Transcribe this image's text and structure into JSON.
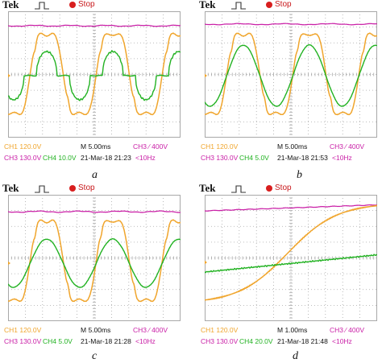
{
  "colors": {
    "ch1": "#f0a52c",
    "ch3": "#c91ea6",
    "ch4": "#22b222",
    "grid": "#a8a8a8",
    "stop": "#d81e1e"
  },
  "brand": "Tek",
  "run_state": "Stop",
  "ground_marker": "8",
  "panels": [
    {
      "id": "a",
      "caption": "a",
      "ch1_scale": "CH1  120.0V",
      "ch3_scale": "CH3  130.0V",
      "ch4_scale": "CH4  10.0V",
      "timebase": "M 5.00ms",
      "date_time": "21-Mar-18  21:23",
      "trigger": "CH3 ∕ 400V",
      "trigger_freq": "<10Hz"
    },
    {
      "id": "b",
      "caption": "b",
      "ch1_scale": "CH1  120.0V",
      "ch3_scale": "CH3  130.0V",
      "ch4_scale": "CH4  5.0V",
      "timebase": "M 5.00ms",
      "date_time": "21-Mar-18  21:53",
      "trigger": "CH3 ∕ 400V",
      "trigger_freq": "<10Hz"
    },
    {
      "id": "c",
      "caption": "c",
      "ch1_scale": "CH1  120.0V",
      "ch3_scale": "CH3  130.0V",
      "ch4_scale": "CH4  5.0V",
      "timebase": "M 5.00ms",
      "date_time": "21-Mar-18  21:28",
      "trigger": "CH3 ∕ 400V",
      "trigger_freq": "<10Hz"
    },
    {
      "id": "d",
      "caption": "d",
      "ch1_scale": "CH1  120.0V",
      "ch3_scale": "CH3  130.0V",
      "ch4_scale": "CH4  20.0V",
      "timebase": "M 1.00ms",
      "date_time": "21-Mar-18  21:48",
      "trigger": "CH3 ∕ 400V",
      "trigger_freq": "<10Hz"
    }
  ]
}
